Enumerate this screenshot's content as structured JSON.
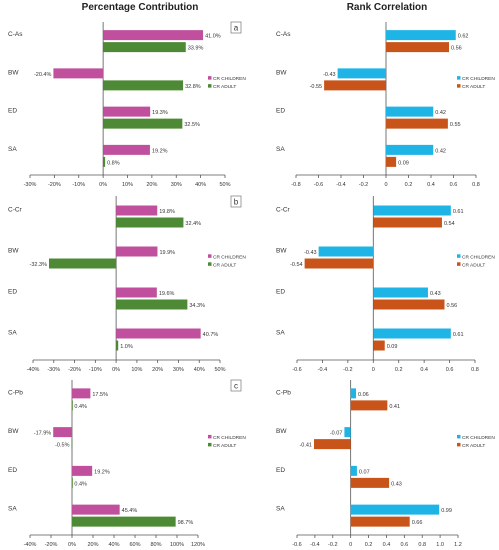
{
  "headers": {
    "left": "Percentage Contribution",
    "right": "Rank Correlation"
  },
  "panel_labels": [
    "a",
    "b",
    "c"
  ],
  "colors": {
    "pc_children": "#c0509e",
    "pc_adult": "#4e8a35",
    "rc_children": "#1fb4e6",
    "rc_adult": "#c8541a"
  },
  "chart_data": [
    {
      "type": "bar",
      "panel": "a",
      "orientation": "horizontal",
      "categories": [
        "C-As",
        "BW",
        "ED",
        "SA"
      ],
      "series": [
        {
          "name": "CR CHILDREN",
          "values": [
            41.0,
            -20.4,
            19.3,
            19.2
          ],
          "labels": [
            "41.0%",
            "-20.4%",
            "19.3%",
            "19.2%"
          ]
        },
        {
          "name": "CR ADULT",
          "values": [
            33.9,
            32.8,
            32.5,
            0.8
          ],
          "labels": [
            "33.9%",
            "32.8%",
            "32.5%",
            "0.8%"
          ]
        }
      ],
      "xlim": [
        -30,
        50
      ],
      "ticks": [
        -30,
        -20,
        -10,
        0,
        10,
        20,
        30,
        40,
        50
      ],
      "tick_labels": [
        "-30%",
        "-20%",
        "-10%",
        "0%",
        "10%",
        "20%",
        "30%",
        "40%",
        "50%"
      ],
      "legend": "right"
    },
    {
      "type": "bar",
      "panel": "a",
      "orientation": "horizontal",
      "categories": [
        "C-As",
        "BW",
        "ED",
        "SA"
      ],
      "series": [
        {
          "name": "CR CHILDREN",
          "values": [
            0.62,
            -0.43,
            0.42,
            0.42
          ],
          "labels": [
            "0.62",
            "-0.43",
            "0.42",
            "0.42"
          ]
        },
        {
          "name": "CR ADULT",
          "values": [
            0.56,
            -0.55,
            0.55,
            0.09
          ],
          "labels": [
            "0.56",
            "-0.55",
            "0.55",
            "0.09"
          ]
        }
      ],
      "xlim": [
        -0.8,
        0.8
      ],
      "ticks": [
        -0.8,
        -0.6,
        -0.4,
        -0.2,
        0,
        0.2,
        0.4,
        0.6,
        0.8
      ],
      "tick_labels": [
        "-0.8",
        "-0.6",
        "-0.4",
        "-0.2",
        "0",
        "0.2",
        "0.4",
        "0.6",
        "0.8"
      ],
      "legend": "right"
    },
    {
      "type": "bar",
      "panel": "b",
      "orientation": "horizontal",
      "categories": [
        "C-Cr",
        "BW",
        "ED",
        "SA"
      ],
      "series": [
        {
          "name": "CR CHILDREN",
          "values": [
            19.8,
            19.9,
            19.6,
            40.7
          ],
          "labels": [
            "19.8%",
            "19.9%",
            "19.6%",
            "40.7%"
          ]
        },
        {
          "name": "CR ADULT",
          "values": [
            32.4,
            -32.3,
            34.3,
            1.0
          ],
          "labels": [
            "32.4%",
            "-32.3%",
            "34.3%",
            "1.0%"
          ]
        }
      ],
      "xlim": [
        -40,
        50
      ],
      "ticks": [
        -40,
        -30,
        -20,
        -10,
        0,
        10,
        20,
        30,
        40,
        50
      ],
      "tick_labels": [
        "-40%",
        "-30%",
        "-20%",
        "-10%",
        "0%",
        "10%",
        "20%",
        "30%",
        "40%",
        "50%"
      ],
      "legend": "right"
    },
    {
      "type": "bar",
      "panel": "b",
      "orientation": "horizontal",
      "categories": [
        "C-Cr",
        "BW",
        "ED",
        "SA"
      ],
      "series": [
        {
          "name": "CR CHILDREN",
          "values": [
            0.61,
            -0.43,
            0.43,
            0.61
          ],
          "labels": [
            "0.61",
            "-0.43",
            "0.43",
            "0.61"
          ]
        },
        {
          "name": "CR ADULT",
          "values": [
            0.54,
            -0.54,
            0.56,
            0.09
          ],
          "labels": [
            "0.54",
            "-0.54",
            "0.56",
            "0.09"
          ]
        }
      ],
      "xlim": [
        -0.6,
        0.8
      ],
      "ticks": [
        -0.6,
        -0.4,
        -0.2,
        0,
        0.2,
        0.4,
        0.6,
        0.8
      ],
      "tick_labels": [
        "-0.6",
        "-0.4",
        "-0.2",
        "0",
        "0.2",
        "0.4",
        "0.6",
        "0.8"
      ],
      "legend": "right"
    },
    {
      "type": "bar",
      "panel": "c",
      "orientation": "horizontal",
      "categories": [
        "C-Pb",
        "BW",
        "ED",
        "SA"
      ],
      "series": [
        {
          "name": "CR CHILDREN",
          "values": [
            17.5,
            -17.9,
            19.2,
            45.4
          ],
          "labels": [
            "17.5%",
            "-17.9%",
            "19.2%",
            "45.4%"
          ]
        },
        {
          "name": "CR ADULT",
          "values": [
            0.4,
            -0.5,
            0.4,
            98.7
          ],
          "labels": [
            "0.4%",
            "-0.5%",
            "0.4%",
            "98.7%"
          ]
        }
      ],
      "xlim": [
        -40,
        120
      ],
      "ticks": [
        -40,
        -20,
        0,
        20,
        40,
        60,
        80,
        100,
        120
      ],
      "tick_labels": [
        "-40%",
        "-20%",
        "0%",
        "20%",
        "40%",
        "60%",
        "80%",
        "100%",
        "120%"
      ],
      "legend": "right"
    },
    {
      "type": "bar",
      "panel": "c",
      "orientation": "horizontal",
      "categories": [
        "C-Pb",
        "BW",
        "ED",
        "SA"
      ],
      "series": [
        {
          "name": "CR CHILDREN",
          "values": [
            0.06,
            -0.07,
            0.07,
            0.99
          ],
          "labels": [
            "0.06",
            "-0.07",
            "0.07",
            "0.99"
          ]
        },
        {
          "name": "CR ADULT",
          "values": [
            0.41,
            -0.41,
            0.43,
            0.66
          ],
          "labels": [
            "0.41",
            "-0.41",
            "0.43",
            "0.66"
          ]
        }
      ],
      "xlim": [
        -0.6,
        1.2
      ],
      "ticks": [
        -0.6,
        -0.4,
        -0.2,
        0,
        0.2,
        0.4,
        0.6,
        0.8,
        1.0,
        1.2
      ],
      "tick_labels": [
        "-0.6",
        "-0.4",
        "-0.2",
        "0",
        "0.2",
        "0.4",
        "0.6",
        "0.8",
        "1.0",
        "1.2"
      ],
      "legend": "right"
    }
  ]
}
